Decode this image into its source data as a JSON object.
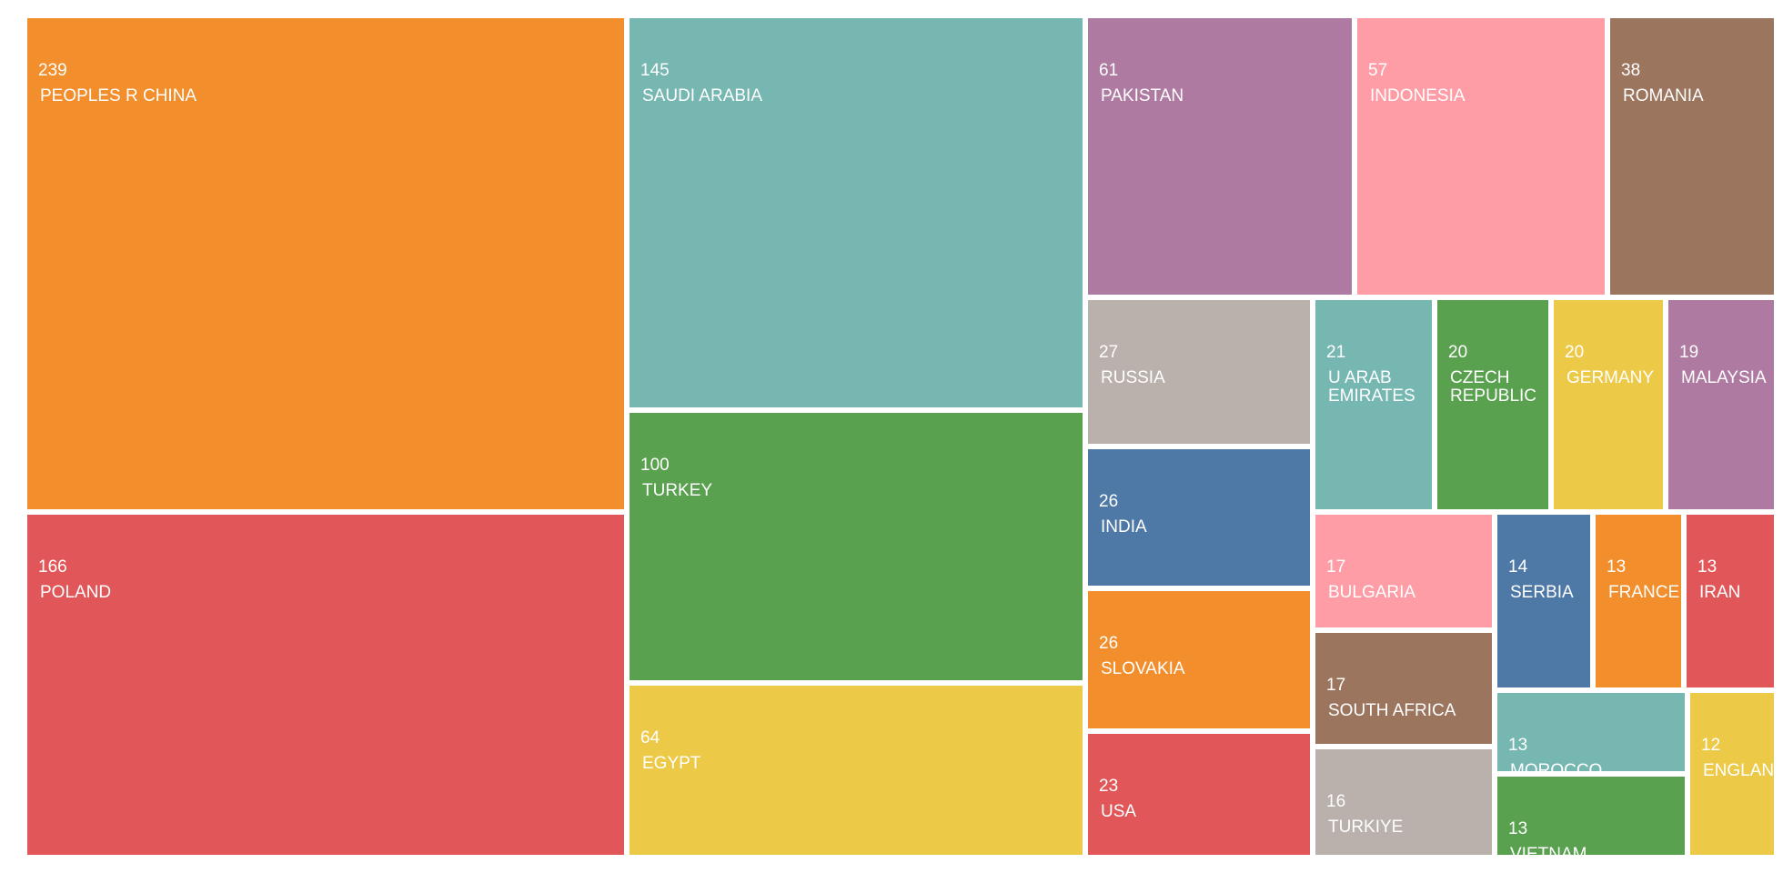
{
  "chart_data": {
    "type": "treemap",
    "title": "",
    "colors": {
      "orange": "#f28e2b",
      "teal": "#76b7b2",
      "purple": "#af7aa1",
      "pink": "#ff9da7",
      "brown": "#9c755f",
      "red": "#e15759",
      "green": "#59a14f",
      "yellow": "#edc948",
      "gray": "#bab0ac",
      "blue": "#4e79a7"
    },
    "items": [
      {
        "label": "PEOPLES R CHINA",
        "value": 239,
        "color": "#f28e2b"
      },
      {
        "label": "POLAND",
        "value": 166,
        "color": "#e15759"
      },
      {
        "label": "SAUDI ARABIA",
        "value": 145,
        "color": "#76b7b2"
      },
      {
        "label": "TURKEY",
        "value": 100,
        "color": "#59a14f"
      },
      {
        "label": "EGYPT",
        "value": 64,
        "color": "#edc948"
      },
      {
        "label": "PAKISTAN",
        "value": 61,
        "color": "#af7aa1"
      },
      {
        "label": "INDONESIA",
        "value": 57,
        "color": "#ff9da7"
      },
      {
        "label": "ROMANIA",
        "value": 38,
        "color": "#9c755f"
      },
      {
        "label": "RUSSIA",
        "value": 27,
        "color": "#bab0ac"
      },
      {
        "label": "INDIA",
        "value": 26,
        "color": "#4e79a7"
      },
      {
        "label": "SLOVAKIA",
        "value": 26,
        "color": "#f28e2b"
      },
      {
        "label": "USA",
        "value": 23,
        "color": "#e15759"
      },
      {
        "label": "U ARAB EMIRATES",
        "value": 21,
        "color": "#76b7b2"
      },
      {
        "label": "CZECH REPUBLIC",
        "value": 20,
        "color": "#59a14f"
      },
      {
        "label": "GERMANY",
        "value": 20,
        "color": "#edc948"
      },
      {
        "label": "MALAYSIA",
        "value": 19,
        "color": "#af7aa1"
      },
      {
        "label": "BULGARIA",
        "value": 17,
        "color": "#ff9da7"
      },
      {
        "label": "SOUTH AFRICA",
        "value": 17,
        "color": "#9c755f"
      },
      {
        "label": "TURKIYE",
        "value": 16,
        "color": "#bab0ac"
      },
      {
        "label": "SERBIA",
        "value": 14,
        "color": "#4e79a7"
      },
      {
        "label": "FRANCE",
        "value": 13,
        "color": "#f28e2b"
      },
      {
        "label": "IRAN",
        "value": 13,
        "color": "#e15759"
      },
      {
        "label": "MOROCCO",
        "value": 13,
        "color": "#76b7b2"
      },
      {
        "label": "VIETNAM",
        "value": 13,
        "color": "#59a14f"
      },
      {
        "label": "ENGLAND",
        "value": 12,
        "color": "#edc948"
      }
    ]
  }
}
